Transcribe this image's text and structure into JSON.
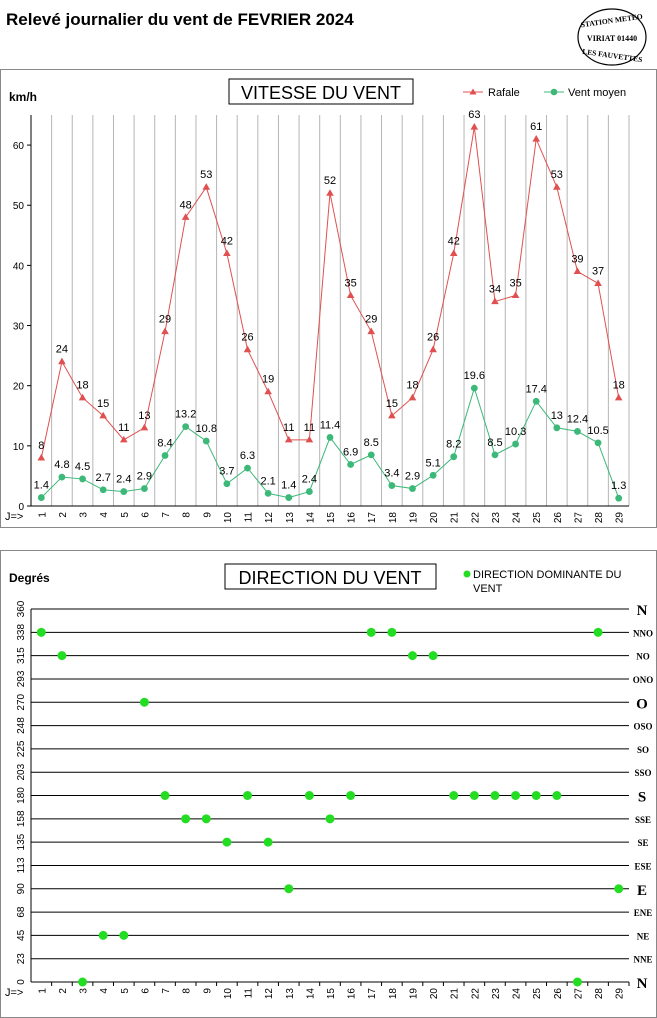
{
  "page": {
    "title": "Relevé journalier du vent de FEVRIER 2024"
  },
  "stamp": {
    "line1": "STATION METEO",
    "line2": "VIRIAT 01440",
    "line3": "LES FAUVETTES"
  },
  "colors": {
    "gust": "#e05050",
    "mean": "#3cb878",
    "dir": "#22dd22",
    "grid": "#b5b5b5"
  },
  "chart_data": [
    {
      "type": "line",
      "title": "VITESSE DU VENT",
      "ylabel": "km/h",
      "xlabel": "J=>",
      "ylim": [
        0,
        65
      ],
      "yticks": [
        0,
        10,
        20,
        30,
        40,
        50,
        60
      ],
      "legend_position": "top-right",
      "grid": "vertical",
      "x": [
        1,
        2,
        3,
        4,
        5,
        6,
        7,
        8,
        9,
        10,
        11,
        12,
        13,
        14,
        15,
        16,
        17,
        18,
        19,
        20,
        21,
        22,
        23,
        24,
        25,
        26,
        27,
        28,
        29
      ],
      "series": [
        {
          "name": "Rafale",
          "marker": "triangle",
          "values": [
            8,
            24,
            18,
            15,
            11,
            13,
            29,
            48,
            53,
            42,
            26,
            19,
            11,
            11,
            52,
            35,
            29,
            15,
            18,
            26,
            42,
            63,
            34,
            35,
            61,
            53,
            39,
            37,
            18
          ],
          "labels": [
            "8",
            "24",
            "18",
            "15",
            "11",
            "13",
            "29",
            "48",
            "53",
            "42",
            "26",
            "19",
            "11",
            "11",
            "52",
            "35",
            "29",
            "15",
            "18",
            "26",
            "42",
            "63",
            "34",
            "35",
            "61",
            "53",
            "39",
            "37",
            "18"
          ]
        },
        {
          "name": "Vent moyen",
          "marker": "circle",
          "values": [
            1.4,
            4.8,
            4.5,
            2.7,
            2.4,
            2.9,
            8.4,
            13.2,
            10.8,
            3.7,
            6.3,
            2.1,
            1.4,
            2.4,
            11.4,
            6.9,
            8.5,
            3.4,
            2.9,
            5.1,
            8.2,
            19.6,
            8.5,
            10.3,
            17.4,
            13,
            12.4,
            10.5,
            1.3
          ],
          "labels": [
            "1.4",
            "4.8",
            "4.5",
            "2.7",
            "2.4",
            "2.9",
            "8.4",
            "13.2",
            "10.8",
            "3.7",
            "6.3",
            "2.1",
            "1.4",
            "2.4",
            "11.4",
            "6.9",
            "8.5",
            "3.4",
            "2.9",
            "5.1",
            "8.2",
            "19.6",
            "8.5",
            "10.3",
            "17.4",
            "13",
            "12.4",
            "10.5",
            "1.3"
          ]
        }
      ]
    },
    {
      "type": "scatter",
      "title": "DIRECTION DU VENT",
      "ylabel": "Degrés",
      "xlabel": "J=>",
      "ylim": [
        0,
        360
      ],
      "legend_position": "top-right",
      "grid": "horizontal",
      "yticks": [
        "0",
        "23",
        "45",
        "68",
        "90",
        "113",
        "135",
        "158",
        "180",
        "203",
        "225",
        "248",
        "270",
        "293",
        "315",
        "338",
        "360"
      ],
      "ytick_values": [
        0,
        22.5,
        45,
        67.5,
        90,
        112.5,
        135,
        157.5,
        180,
        202.5,
        225,
        247.5,
        270,
        292.5,
        315,
        337.5,
        360
      ],
      "compass": [
        "N",
        "NNE",
        "NE",
        "ENE",
        "E",
        "ESE",
        "SE",
        "SSE",
        "S",
        "SSO",
        "SO",
        "OSO",
        "O",
        "ONO",
        "NO",
        "NNO",
        "N"
      ],
      "x": [
        1,
        2,
        3,
        4,
        5,
        6,
        7,
        8,
        9,
        10,
        11,
        12,
        13,
        14,
        15,
        16,
        17,
        18,
        19,
        20,
        21,
        22,
        23,
        24,
        25,
        26,
        27,
        28,
        29
      ],
      "series": [
        {
          "name": "DIRECTION DOMINANTE DU VENT",
          "values": [
            337.5,
            315,
            0,
            45,
            45,
            270,
            180,
            157.5,
            157.5,
            135,
            180,
            135,
            90,
            180,
            157.5,
            180,
            337.5,
            337.5,
            315,
            315,
            180,
            180,
            180,
            180,
            180,
            180,
            0,
            337.5,
            90
          ]
        }
      ]
    }
  ]
}
